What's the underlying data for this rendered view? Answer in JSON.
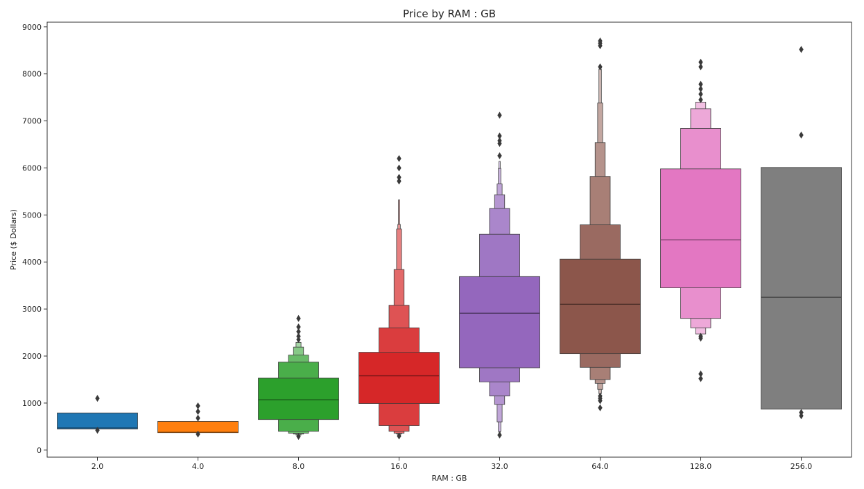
{
  "chart_data": {
    "type": "boxen",
    "title": "Price by RAM : GB",
    "xlabel": "RAM : GB",
    "ylabel": "Price  ($ Dollars)",
    "ylim": [
      -150,
      9100
    ],
    "yticks": [
      0,
      1000,
      2000,
      3000,
      4000,
      5000,
      6000,
      7000,
      8000,
      9000
    ],
    "yticklabels": [
      "0",
      "1000",
      "2000",
      "3000",
      "4000",
      "5000",
      "6000",
      "7000",
      "8000",
      "9000"
    ],
    "grid": false,
    "legend": "none",
    "categories": [
      "2.0",
      "4.0",
      "8.0",
      "16.0",
      "32.0",
      "64.0",
      "128.0",
      "256.0"
    ],
    "series": [
      {
        "category": "2.0",
        "color": "#1f77b4",
        "median": 470,
        "levels": [
          [
            450,
            790
          ]
        ],
        "outliers": [
          1100,
          420
        ]
      },
      {
        "category": "4.0",
        "color": "#ff7f0e",
        "median": 380,
        "levels": [
          [
            370,
            610
          ]
        ],
        "outliers": [
          940,
          820,
          680,
          340
        ]
      },
      {
        "category": "8.0",
        "color": "#2ca02c",
        "median": 1070,
        "levels": [
          [
            650,
            1530
          ],
          [
            400,
            1870
          ],
          [
            360,
            2020
          ],
          [
            340,
            2190
          ],
          [
            320,
            2290
          ]
        ],
        "outliers": [
          2800,
          2620,
          2520,
          2420,
          2350,
          290
        ]
      },
      {
        "category": "16.0",
        "color": "#d62728",
        "median": 1580,
        "levels": [
          [
            990,
            2080
          ],
          [
            520,
            2600
          ],
          [
            400,
            3080
          ],
          [
            360,
            3840
          ],
          [
            340,
            4700
          ],
          [
            320,
            4800
          ],
          [
            310,
            5320
          ]
        ],
        "outliers": [
          6200,
          6000,
          5800,
          5720,
          300
        ]
      },
      {
        "category": "32.0",
        "color": "#9467bd",
        "median": 2910,
        "levels": [
          [
            1750,
            3690
          ],
          [
            1450,
            4590
          ],
          [
            1150,
            5140
          ],
          [
            970,
            5430
          ],
          [
            600,
            5660
          ],
          [
            400,
            5990
          ],
          [
            350,
            6140
          ]
        ],
        "outliers": [
          7120,
          6680,
          6580,
          6520,
          6260,
          320
        ]
      },
      {
        "category": "64.0",
        "color": "#8c564b",
        "median": 3100,
        "levels": [
          [
            2050,
            4060
          ],
          [
            1760,
            4790
          ],
          [
            1500,
            5820
          ],
          [
            1420,
            6540
          ],
          [
            1290,
            7380
          ],
          [
            1200,
            8100
          ]
        ],
        "outliers": [
          8700,
          8650,
          8600,
          8150,
          1150,
          1100,
          1050,
          900
        ]
      },
      {
        "category": "128.0",
        "color": "#e377c2",
        "median": 4470,
        "levels": [
          [
            3450,
            5980
          ],
          [
            2800,
            6840
          ],
          [
            2600,
            7260
          ],
          [
            2470,
            7400
          ]
        ],
        "outliers": [
          8250,
          8150,
          7780,
          7680,
          7570,
          7450,
          2420,
          2380,
          1620,
          1520
        ]
      },
      {
        "category": "256.0",
        "color": "#7f7f7f",
        "median": 3250,
        "levels": [
          [
            870,
            6010
          ]
        ],
        "outliers": [
          8520,
          6700,
          800,
          730
        ]
      }
    ]
  }
}
